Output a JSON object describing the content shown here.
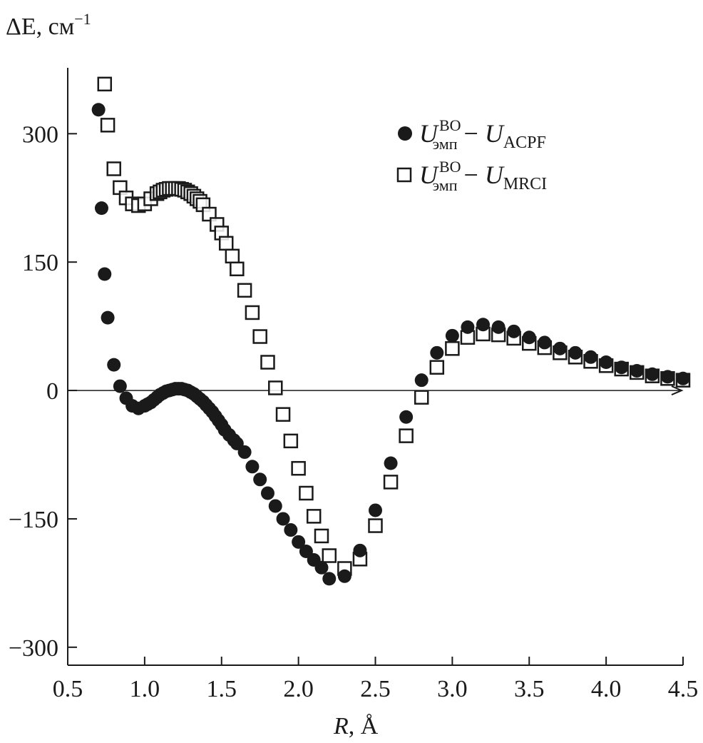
{
  "chart_data": {
    "type": "scatter",
    "ylabel": {
      "main": "ΔE",
      "unit": ", см",
      "exp": "−1"
    },
    "xlabel": {
      "main": "R",
      "unit": ", Å"
    },
    "xlim": [
      0.5,
      4.5
    ],
    "ylim": [
      -321,
      377
    ],
    "xticks": [
      "0.5",
      "1.0",
      "1.5",
      "2.0",
      "2.5",
      "3.0",
      "3.5",
      "4.0",
      "4.5"
    ],
    "xtick_values": [
      0.5,
      1.0,
      1.5,
      2.0,
      2.5,
      3.0,
      3.5,
      4.0,
      4.5
    ],
    "yticks": [
      "300",
      "150",
      "0",
      "−150",
      "−300"
    ],
    "ytick_values": [
      300,
      150,
      0,
      -150,
      -300
    ],
    "grid": false,
    "zero_line_arrow": true,
    "legend_placement": "top-right",
    "series": [
      {
        "name": "U_эмп^BO − U_ACPF",
        "legend": {
          "u": "U",
          "sup": "BO",
          "sub": "эмп",
          "minus": " − ",
          "u2": "U",
          "sub2": "ACPF"
        },
        "marker": "filled-circle",
        "color": "#1a1a1a",
        "x": [
          0.7,
          0.72,
          0.74,
          0.76,
          0.8,
          0.84,
          0.88,
          0.92,
          0.96,
          1.0,
          1.02,
          1.04,
          1.06,
          1.08,
          1.1,
          1.12,
          1.14,
          1.16,
          1.18,
          1.2,
          1.22,
          1.24,
          1.26,
          1.28,
          1.3,
          1.32,
          1.34,
          1.36,
          1.38,
          1.4,
          1.42,
          1.44,
          1.46,
          1.48,
          1.5,
          1.52,
          1.55,
          1.58,
          1.6,
          1.65,
          1.7,
          1.75,
          1.8,
          1.85,
          1.9,
          1.95,
          2.0,
          2.05,
          2.1,
          2.15,
          2.2,
          2.3,
          2.4,
          2.5,
          2.6,
          2.7,
          2.8,
          2.9,
          3.0,
          3.1,
          3.2,
          3.3,
          3.4,
          3.5,
          3.6,
          3.7,
          3.8,
          3.9,
          4.0,
          4.1,
          4.2,
          4.3,
          4.4,
          4.5
        ],
        "y": [
          328,
          213,
          136,
          85,
          30,
          5,
          -9,
          -18,
          -21,
          -18,
          -16,
          -14,
          -11,
          -8,
          -5,
          -3,
          -1,
          0,
          1,
          2,
          2,
          2,
          1,
          0,
          -2,
          -4,
          -7,
          -10,
          -13,
          -17,
          -21,
          -25,
          -30,
          -35,
          -40,
          -46,
          -52,
          -58,
          -62,
          -72,
          -89,
          -104,
          -120,
          -135,
          -150,
          -163,
          -177,
          -188,
          -198,
          -207,
          -220,
          -217,
          -187,
          -140,
          -85,
          -31,
          12,
          44,
          64,
          74,
          77,
          74,
          69,
          62,
          56,
          49,
          44,
          39,
          33,
          27,
          23,
          19,
          16,
          14
        ]
      },
      {
        "name": "U_эмп^BO − U_MRCI",
        "legend": {
          "u": "U",
          "sup": "BO",
          "sub": "эмп",
          "minus": " − ",
          "u2": "U",
          "sub2": "MRCI"
        },
        "marker": "open-square",
        "color": "#1a1a1a",
        "x": [
          0.74,
          0.76,
          0.8,
          0.84,
          0.88,
          0.92,
          0.96,
          1.0,
          1.04,
          1.08,
          1.1,
          1.12,
          1.14,
          1.16,
          1.18,
          1.2,
          1.22,
          1.24,
          1.26,
          1.28,
          1.3,
          1.32,
          1.34,
          1.36,
          1.38,
          1.42,
          1.47,
          1.5,
          1.53,
          1.57,
          1.6,
          1.65,
          1.7,
          1.75,
          1.8,
          1.85,
          1.9,
          1.95,
          2.0,
          2.05,
          2.1,
          2.15,
          2.2,
          2.3,
          2.4,
          2.5,
          2.6,
          2.7,
          2.8,
          2.9,
          3.0,
          3.1,
          3.2,
          3.3,
          3.4,
          3.5,
          3.6,
          3.7,
          3.8,
          3.9,
          4.0,
          4.1,
          4.2,
          4.3,
          4.4,
          4.5
        ],
        "y": [
          358,
          310,
          259,
          237,
          225,
          218,
          216,
          218,
          224,
          230,
          232,
          234,
          235,
          236,
          236,
          236,
          236,
          235,
          234,
          232,
          230,
          227,
          224,
          221,
          217,
          206,
          194,
          184,
          172,
          157,
          142,
          117,
          91,
          63,
          33,
          3,
          -28,
          -59,
          -91,
          -120,
          -147,
          -170,
          -193,
          -208,
          -197,
          -158,
          -107,
          -53,
          -8,
          27,
          49,
          62,
          66,
          65,
          61,
          55,
          50,
          44,
          39,
          34,
          29,
          25,
          21,
          17,
          14,
          12
        ]
      }
    ]
  }
}
